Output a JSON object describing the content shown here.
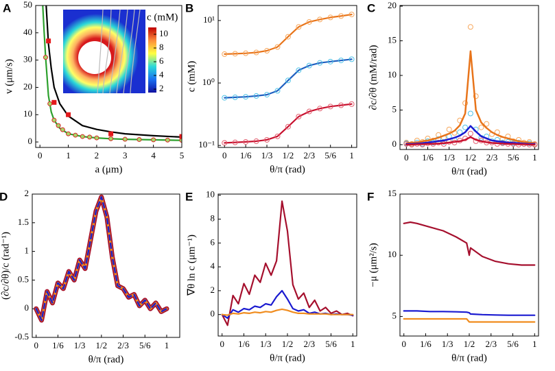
{
  "chart_data": [
    {
      "type": "line",
      "label": "A",
      "xlabel": "a (μm)",
      "ylabel": "v (μm/s)",
      "xlim": [
        -0.15,
        5
      ],
      "ylim": [
        -2,
        50
      ],
      "xticks": [
        0,
        1,
        2,
        3,
        4,
        5
      ],
      "yticks": [
        0,
        10,
        20,
        30,
        40,
        50
      ],
      "series": [
        {
          "color": "#000000",
          "mode": "line",
          "x": [
            0.22,
            0.3,
            0.4,
            0.5,
            0.7,
            1,
            1.5,
            2,
            2.5,
            3,
            4,
            5
          ],
          "values": [
            50,
            36,
            27,
            20,
            14,
            9.5,
            6,
            4.6,
            3.7,
            3,
            2.3,
            1.8
          ]
        },
        {
          "color": "#2ca02c",
          "mode": "line",
          "x": [
            0.1,
            0.15,
            0.2,
            0.3,
            0.4,
            0.5,
            0.7,
            1,
            1.5,
            2,
            2.5,
            3,
            4,
            5
          ],
          "values": [
            50,
            40,
            31,
            17,
            11,
            8,
            5,
            3,
            2,
            1.5,
            1.2,
            1,
            0.8,
            0.6
          ]
        },
        {
          "color": "#a6d96a",
          "edge": "#d62728",
          "mode": "markers",
          "x": [
            0.2,
            0.35,
            0.5,
            0.65,
            0.8,
            1,
            1.25,
            1.5,
            1.75,
            2,
            2.5,
            3,
            3.5,
            4,
            4.5,
            5
          ],
          "values": [
            31,
            14,
            8,
            6,
            4.5,
            3,
            2.5,
            2,
            1.8,
            1.5,
            1.2,
            1,
            0.9,
            0.8,
            0.7,
            0.6
          ]
        },
        {
          "color": "#e31a1c",
          "mode": "markers",
          "marker": "square",
          "x": [
            0.3,
            0.5,
            1,
            2.5,
            5
          ],
          "values": [
            37,
            14.5,
            10,
            3,
            2
          ]
        }
      ],
      "inset": {
        "label": "c (mM)",
        "clim": [
          1.5,
          11
        ],
        "cticks": [
          2,
          4,
          6,
          8,
          10
        ]
      }
    },
    {
      "type": "line",
      "label": "B",
      "xlabel": "θ/π (rad)",
      "ylabel": "c (mM)",
      "ylog": true,
      "xlim": [
        -0.05,
        1.04
      ],
      "ylim": [
        0.093,
        17.4
      ],
      "xticks": [
        0,
        {
          "value": 0.1667,
          "label": "1/6"
        },
        {
          "value": 0.3333,
          "label": "1/3"
        },
        {
          "value": 0.5,
          "label": "1/2"
        },
        {
          "value": 0.6667,
          "label": "2/3"
        },
        {
          "value": 0.8333,
          "label": "5/6"
        },
        1
      ],
      "yticks": [
        {
          "value": 0.1,
          "label": "10⁻¹"
        },
        {
          "value": 1,
          "label": "10⁰"
        },
        {
          "value": 10,
          "label": "10¹"
        }
      ],
      "x": [
        0,
        0.0833,
        0.1667,
        0.25,
        0.3333,
        0.4167,
        0.5,
        0.5833,
        0.6667,
        0.75,
        0.8333,
        0.9167,
        1
      ],
      "series": [
        {
          "color": "#e8741a",
          "edge": "#f7a75c",
          "mode": "line+markers",
          "values": [
            2.9,
            2.94,
            2.99,
            3.08,
            3.28,
            3.77,
            5.5,
            7.9,
            9.5,
            10.4,
            11.2,
            11.8,
            12.5
          ]
        },
        {
          "color": "#1f5fc0",
          "edge": "#4fc3e8",
          "mode": "line+markers",
          "values": [
            0.58,
            0.59,
            0.6,
            0.62,
            0.65,
            0.75,
            1.1,
            1.6,
            1.9,
            2.1,
            2.2,
            2.3,
            2.4
          ]
        },
        {
          "color": "#c8102e",
          "edge": "#e36070",
          "mode": "line+markers",
          "values": [
            0.11,
            0.112,
            0.114,
            0.117,
            0.123,
            0.14,
            0.2,
            0.29,
            0.35,
            0.39,
            0.42,
            0.44,
            0.46
          ]
        }
      ]
    },
    {
      "type": "line",
      "label": "C",
      "xlabel": "θ/π (rad)",
      "ylabel": "∂c/∂θ (mM/rad)",
      "xlim": [
        -0.05,
        1.03
      ],
      "ylim": [
        -0.7,
        20.1
      ],
      "xticks": [
        0,
        {
          "value": 0.1667,
          "label": "1/6"
        },
        {
          "value": 0.3333,
          "label": "1/3"
        },
        {
          "value": 0.5,
          "label": "1/2"
        },
        {
          "value": 0.6667,
          "label": "2/3"
        },
        {
          "value": 0.8333,
          "label": "5/6"
        },
        1
      ],
      "yticks": [
        0,
        5,
        10,
        15,
        20
      ],
      "x": [
        0,
        0.0417,
        0.0833,
        0.125,
        0.1667,
        0.2083,
        0.25,
        0.2917,
        0.3333,
        0.375,
        0.4167,
        0.4583,
        0.5,
        0.5417,
        0.5833,
        0.625,
        0.6667,
        0.7083,
        0.75,
        0.7917,
        0.8333,
        0.875,
        0.9167,
        0.9583,
        1
      ],
      "series": [
        {
          "color": "#f7a75c",
          "mode": "markers",
          "values": [
            0.3,
            0.1,
            0.6,
            0.4,
            0.9,
            0.6,
            1.4,
            1.0,
            2.2,
            1.7,
            3.5,
            6,
            17,
            7,
            2.5,
            3,
            1.5,
            1.8,
            0.8,
            1.2,
            0.5,
            0.7,
            0.3,
            0.4,
            0.1
          ]
        },
        {
          "color": "#4fc3e8",
          "mode": "markers",
          "values": [
            0.2,
            0,
            0.3,
            0.1,
            0.5,
            0.3,
            0.8,
            0.4,
            1.2,
            0.7,
            1.8,
            2.5,
            4.5,
            2.2,
            1.0,
            1.2,
            0.5,
            0.7,
            0.3,
            0.4,
            0.2,
            0.3,
            0.1,
            0.2,
            0
          ]
        },
        {
          "color": "#e36070",
          "mode": "markers",
          "values": [
            0.1,
            0,
            0.1,
            0,
            0.2,
            0.1,
            0.3,
            0.1,
            0.4,
            0.3,
            0.6,
            0.9,
            1.6,
            0.5,
            0.6,
            0.3,
            0.3,
            0.1,
            0.2,
            0.1,
            0.1,
            0,
            0.1,
            0,
            0
          ]
        },
        {
          "color": "#e8741a",
          "mode": "line",
          "values": [
            0.2,
            0.3,
            0.3,
            0.5,
            0.6,
            0.8,
            1.0,
            1.3,
            1.6,
            2.0,
            2.8,
            4.5,
            13.5,
            5,
            3.2,
            2.4,
            1.8,
            1.4,
            1.1,
            0.9,
            0.7,
            0.5,
            0.4,
            0.3,
            0.2
          ]
        },
        {
          "color": "#1a1ad0",
          "mode": "line",
          "values": [
            0.1,
            0.1,
            0.15,
            0.2,
            0.3,
            0.4,
            0.5,
            0.6,
            0.8,
            1.0,
            1.3,
            1.8,
            2.7,
            1.9,
            1.2,
            0.9,
            0.6,
            0.5,
            0.4,
            0.3,
            0.25,
            0.2,
            0.15,
            0.1,
            0.1
          ]
        },
        {
          "color": "#c8102e",
          "mode": "line",
          "values": [
            0,
            0,
            0.05,
            0.05,
            0.1,
            0.1,
            0.15,
            0.2,
            0.3,
            0.4,
            0.5,
            0.7,
            1.1,
            0.7,
            0.5,
            0.35,
            0.25,
            0.2,
            0.15,
            0.1,
            0.1,
            0.05,
            0.05,
            0,
            0
          ]
        }
      ]
    },
    {
      "type": "line",
      "label": "D",
      "xlabel": "θ/π (rad)",
      "ylabel": "(∂c/∂θ)/c (rad⁻¹)",
      "xlim": [
        -0.03,
        1.1
      ],
      "ylim": [
        -0.5,
        2.0
      ],
      "xticks": [
        0,
        {
          "value": 0.1667,
          "label": "1/6"
        },
        {
          "value": 0.3333,
          "label": "1/3"
        },
        {
          "value": 0.5,
          "label": "1/2"
        },
        {
          "value": 0.6667,
          "label": "2/3"
        },
        {
          "value": 0.8333,
          "label": "5/6"
        },
        1
      ],
      "yticks": [
        -0.5,
        0,
        0.5,
        1,
        1.5,
        2
      ],
      "x": [
        0,
        0.0417,
        0.0833,
        0.125,
        0.1667,
        0.2083,
        0.25,
        0.2917,
        0.3333,
        0.375,
        0.4167,
        0.4583,
        0.5,
        0.5417,
        0.5833,
        0.625,
        0.6667,
        0.7083,
        0.75,
        0.7917,
        0.8333,
        0.875,
        0.9167,
        0.9583,
        1
      ],
      "series": [
        {
          "color": "#a50f2d",
          "mode": "line",
          "values": [
            0,
            -0.2,
            0.3,
            0.1,
            0.45,
            0.35,
            0.65,
            0.5,
            0.85,
            0.7,
            1.2,
            1.7,
            1.95,
            1.6,
            0.9,
            0.4,
            0.35,
            0.2,
            0.25,
            0.05,
            0.15,
            0,
            0.1,
            -0.05,
            0
          ]
        },
        {
          "color": "#f08c1e",
          "mode": "line",
          "values": [
            0,
            -0.2,
            0.3,
            0.1,
            0.45,
            0.35,
            0.65,
            0.5,
            0.85,
            0.7,
            1.2,
            1.7,
            1.95,
            1.6,
            0.9,
            0.4,
            0.35,
            0.2,
            0.25,
            0.05,
            0.15,
            0,
            0.1,
            -0.05,
            0
          ]
        },
        {
          "color": "#2020c8",
          "mode": "line",
          "dash": true,
          "values": [
            0,
            -0.2,
            0.3,
            0.1,
            0.45,
            0.35,
            0.65,
            0.5,
            0.85,
            0.7,
            1.2,
            1.7,
            1.95,
            1.6,
            0.9,
            0.4,
            0.35,
            0.2,
            0.25,
            0.05,
            0.15,
            0,
            0.1,
            -0.05,
            0
          ]
        }
      ]
    },
    {
      "type": "line",
      "label": "E",
      "xlabel": "θ/π (rad)",
      "ylabel": "∇θ ln c (μm⁻¹)",
      "xlim": [
        -0.03,
        1.03
      ],
      "ylim": [
        -1.8,
        10.1
      ],
      "xticks": [
        0,
        {
          "value": 0.1667,
          "label": "1/6"
        },
        {
          "value": 0.3333,
          "label": "1/3"
        },
        {
          "value": 0.5,
          "label": "1/2"
        },
        {
          "value": 0.6667,
          "label": "2/3"
        },
        {
          "value": 0.8333,
          "label": "5/6"
        },
        1
      ],
      "yticks": [
        0,
        2,
        4,
        6,
        8,
        10
      ],
      "x": [
        0,
        0.0417,
        0.0833,
        0.125,
        0.1667,
        0.2083,
        0.25,
        0.2917,
        0.3333,
        0.375,
        0.4167,
        0.4583,
        0.5,
        0.5417,
        0.5833,
        0.625,
        0.6667,
        0.7083,
        0.75,
        0.7917,
        0.8333,
        0.875,
        0.9167,
        0.9583,
        1
      ],
      "series": [
        {
          "color": "#a50f2d",
          "mode": "line",
          "values": [
            0,
            -0.9,
            1.6,
            0.9,
            2.6,
            1.7,
            3.3,
            2.7,
            4.3,
            3.3,
            4.5,
            9.5,
            7.0,
            2.5,
            1.3,
            1.8,
            0.6,
            1.2,
            0.3,
            0.6,
            0.1,
            0.3,
            0,
            0.1,
            -0.1
          ]
        },
        {
          "color": "#1a1ad0",
          "mode": "line",
          "values": [
            0,
            -0.3,
            0.4,
            0.2,
            0.5,
            0.4,
            0.7,
            0.6,
            0.9,
            0.8,
            1.5,
            2.0,
            1.3,
            0.5,
            0.3,
            0.4,
            0.1,
            0.2,
            0.05,
            0.1,
            0,
            0.05,
            0,
            0,
            -0.05
          ]
        },
        {
          "color": "#f08c1e",
          "mode": "line",
          "values": [
            0,
            -0.05,
            0.1,
            0.05,
            0.15,
            0.1,
            0.2,
            0.15,
            0.25,
            0.2,
            0.35,
            0.45,
            0.35,
            0.2,
            0.1,
            0.1,
            0.05,
            0.05,
            0.05,
            0.05,
            0,
            0,
            0,
            0,
            0
          ]
        }
      ]
    },
    {
      "type": "line",
      "label": "F",
      "xlabel": "θ/π (rad)",
      "ylabel": "−μ (μm²/s)",
      "xlim": [
        -0.03,
        1.03
      ],
      "ylim": [
        3.4,
        15
      ],
      "xticks": [
        0,
        {
          "value": 0.1667,
          "label": "1/6"
        },
        {
          "value": 0.3333,
          "label": "1/3"
        },
        {
          "value": 0.5,
          "label": "1/2"
        },
        {
          "value": 0.6667,
          "label": "2/3"
        },
        {
          "value": 0.8333,
          "label": "5/6"
        },
        1
      ],
      "yticks": [
        5,
        10,
        15
      ],
      "x": [
        0,
        0.05,
        0.1,
        0.2,
        0.3,
        0.4,
        0.48,
        0.5,
        0.51,
        0.6,
        0.7,
        0.8,
        0.9,
        1
      ],
      "series": [
        {
          "color": "#a50f2d",
          "mode": "line",
          "values": [
            12.6,
            12.7,
            12.6,
            12.3,
            12.0,
            11.5,
            11.0,
            10.0,
            10.6,
            9.9,
            9.5,
            9.3,
            9.2,
            9.2
          ]
        },
        {
          "color": "#1a1ad0",
          "mode": "line",
          "values": [
            5.45,
            5.45,
            5.45,
            5.4,
            5.4,
            5.38,
            5.35,
            5.3,
            5.2,
            5.15,
            5.12,
            5.1,
            5.1,
            5.1
          ]
        },
        {
          "color": "#f08c1e",
          "mode": "line",
          "values": [
            4.8,
            4.8,
            4.8,
            4.8,
            4.8,
            4.8,
            4.8,
            4.55,
            4.55,
            4.55,
            4.55,
            4.55,
            4.55,
            4.55
          ]
        }
      ]
    }
  ]
}
